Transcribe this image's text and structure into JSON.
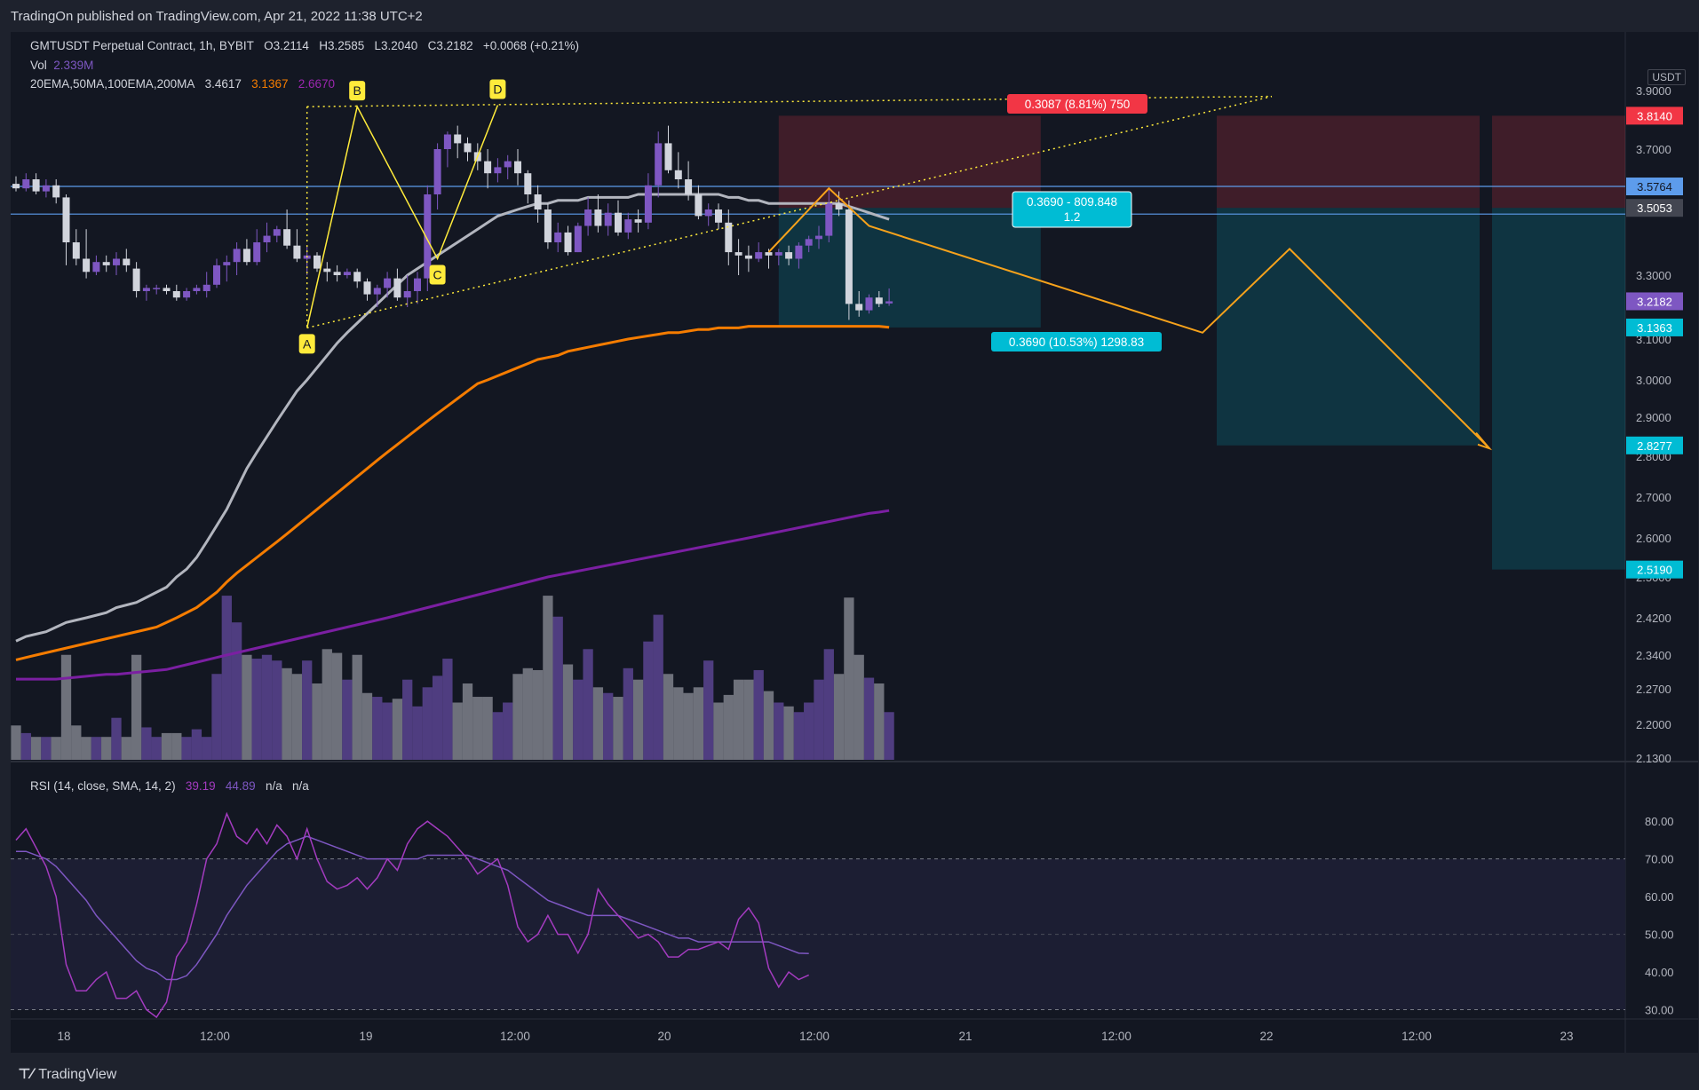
{
  "header": {
    "published": "TradingOn published on TradingView.com, Apr 21, 2022 11:38 UTC+2"
  },
  "legend": {
    "symbol": "GMTUSDT Perpetual Contract, 1h, BYBIT",
    "open_label": "O",
    "open": "3.2114",
    "high_label": "H",
    "high": "3.2585",
    "low_label": "L",
    "low": "3.2040",
    "close_label": "C",
    "close": "3.2182",
    "change": "+0.0068 (+0.21%)",
    "vol_label": "Vol",
    "vol_value": "2.339M",
    "ma_label": "20EMA,50MA,100EMA,200MA",
    "ma_values": [
      "3.4617",
      "3.1367",
      "2.6670"
    ],
    "ma_colors": [
      "#b2b5be",
      "#f57c00",
      "#9c27b0"
    ],
    "rsi_label": "RSI (14, close, SMA, 14, 2)",
    "rsi_value": "39.19",
    "rsi_sma_value": "44.89",
    "rsi_na1": "n/a",
    "rsi_na2": "n/a"
  },
  "currency": "USDT",
  "footer": {
    "brand": "TradingView"
  },
  "colors": {
    "up": "#7e57c2",
    "down": "#d1d4dc",
    "ema20": "#b2b5be",
    "ema100": "#f57c00",
    "ma200": "#7b1fa2",
    "rsi": "#a33bbf",
    "rsi_ma": "#7e57c2",
    "pattern": "#ffeb3b",
    "projection": "#f7a21b",
    "target": "#00bcd4",
    "stop": "#f23645",
    "hline": "#5d9cec"
  },
  "chart_data": {
    "type": "candlestick",
    "price_ticks": [
      "3.9000",
      "3.7000",
      "3.5000",
      "3.3000",
      "3.1000",
      "3.0000",
      "2.9000",
      "2.8000",
      "2.7000",
      "2.6000",
      "2.5000",
      "2.4200",
      "2.3400",
      "2.2700",
      "2.2000",
      "2.1300"
    ],
    "time_ticks": [
      "18",
      "12:00",
      "19",
      "12:00",
      "20",
      "12:00",
      "21",
      "12:00",
      "22",
      "12:00",
      "23"
    ],
    "rsi_ticks": [
      "80.00",
      "70.00",
      "60.00",
      "50.00",
      "40.00",
      "30.00"
    ],
    "rsi_levels": [
      70,
      30
    ],
    "price_tags": [
      {
        "label": "3.8140",
        "kind": "stop"
      },
      {
        "label": "3.5764",
        "kind": "hline"
      },
      {
        "label": "3.5053",
        "kind": "neutral"
      },
      {
        "label": "3.2182",
        "kind": "last"
      },
      {
        "label": "3.1363",
        "kind": "target"
      },
      {
        "label": "2.8277",
        "kind": "target"
      },
      {
        "label": "2.5190",
        "kind": "target"
      }
    ],
    "pattern_labels": [
      "A",
      "B",
      "C",
      "D"
    ],
    "pattern_points": [
      {
        "label": "A",
        "t": 29,
        "p": 3.135
      },
      {
        "label": "B",
        "t": 34,
        "p": 3.845
      },
      {
        "label": "C",
        "t": 42,
        "p": 3.35
      },
      {
        "label": "D",
        "t": 48,
        "p": 3.85
      }
    ],
    "annotations": {
      "stop_box": "0.3087 (8.81%) 750",
      "target_box": "0.3690 (10.53%) 1298.83",
      "rr_box_top": "0.3690 - 809.848",
      "rr_box_bottom": "1.2"
    },
    "candles": [
      [
        3.585,
        3.61,
        3.56,
        3.57
      ],
      [
        3.57,
        3.62,
        3.56,
        3.6
      ],
      [
        3.6,
        3.62,
        3.55,
        3.56
      ],
      [
        3.56,
        3.6,
        3.54,
        3.58
      ],
      [
        3.58,
        3.6,
        3.52,
        3.54
      ],
      [
        3.54,
        3.55,
        3.33,
        3.4
      ],
      [
        3.4,
        3.44,
        3.33,
        3.35
      ],
      [
        3.35,
        3.44,
        3.29,
        3.31
      ],
      [
        3.31,
        3.36,
        3.3,
        3.34
      ],
      [
        3.34,
        3.36,
        3.31,
        3.33
      ],
      [
        3.33,
        3.37,
        3.3,
        3.35
      ],
      [
        3.35,
        3.38,
        3.31,
        3.33
      ],
      [
        3.32,
        3.34,
        3.23,
        3.25
      ],
      [
        3.25,
        3.27,
        3.22,
        3.26
      ],
      [
        3.26,
        3.27,
        3.24,
        3.26
      ],
      [
        3.26,
        3.27,
        3.24,
        3.25
      ],
      [
        3.25,
        3.27,
        3.22,
        3.23
      ],
      [
        3.23,
        3.26,
        3.22,
        3.25
      ],
      [
        3.25,
        3.27,
        3.24,
        3.26
      ],
      [
        3.25,
        3.31,
        3.23,
        3.27
      ],
      [
        3.27,
        3.35,
        3.26,
        3.33
      ],
      [
        3.33,
        3.36,
        3.28,
        3.34
      ],
      [
        3.34,
        3.4,
        3.3,
        3.38
      ],
      [
        3.38,
        3.41,
        3.33,
        3.34
      ],
      [
        3.34,
        3.44,
        3.33,
        3.4
      ],
      [
        3.4,
        3.46,
        3.37,
        3.42
      ],
      [
        3.42,
        3.45,
        3.4,
        3.44
      ],
      [
        3.44,
        3.5,
        3.38,
        3.39
      ],
      [
        3.39,
        3.44,
        3.34,
        3.35
      ],
      [
        3.35,
        3.39,
        3.3,
        3.36
      ],
      [
        3.36,
        3.37,
        3.31,
        3.32
      ],
      [
        3.32,
        3.34,
        3.28,
        3.31
      ],
      [
        3.31,
        3.33,
        3.28,
        3.3
      ],
      [
        3.3,
        3.32,
        3.29,
        3.31
      ],
      [
        3.31,
        3.32,
        3.26,
        3.28
      ],
      [
        3.28,
        3.29,
        3.22,
        3.24
      ],
      [
        3.24,
        3.27,
        3.2,
        3.26
      ],
      [
        3.26,
        3.31,
        3.23,
        3.29
      ],
      [
        3.29,
        3.32,
        3.22,
        3.23
      ],
      [
        3.23,
        3.3,
        3.2,
        3.25
      ],
      [
        3.25,
        3.31,
        3.21,
        3.29
      ],
      [
        3.29,
        3.58,
        3.25,
        3.55
      ],
      [
        3.55,
        3.72,
        3.5,
        3.7
      ],
      [
        3.7,
        3.76,
        3.64,
        3.75
      ],
      [
        3.75,
        3.78,
        3.67,
        3.72
      ],
      [
        3.72,
        3.74,
        3.66,
        3.69
      ],
      [
        3.69,
        3.72,
        3.63,
        3.66
      ],
      [
        3.66,
        3.7,
        3.57,
        3.62
      ],
      [
        3.62,
        3.67,
        3.59,
        3.64
      ],
      [
        3.64,
        3.68,
        3.6,
        3.66
      ],
      [
        3.66,
        3.7,
        3.58,
        3.62
      ],
      [
        3.62,
        3.63,
        3.52,
        3.55
      ],
      [
        3.55,
        3.58,
        3.46,
        3.5
      ],
      [
        3.5,
        3.52,
        3.38,
        3.4
      ],
      [
        3.4,
        3.46,
        3.37,
        3.43
      ],
      [
        3.43,
        3.45,
        3.36,
        3.37
      ],
      [
        3.37,
        3.46,
        3.37,
        3.45
      ],
      [
        3.45,
        3.54,
        3.42,
        3.5
      ],
      [
        3.5,
        3.55,
        3.43,
        3.45
      ],
      [
        3.45,
        3.52,
        3.42,
        3.49
      ],
      [
        3.49,
        3.53,
        3.42,
        3.43
      ],
      [
        3.43,
        3.49,
        3.41,
        3.47
      ],
      [
        3.47,
        3.5,
        3.43,
        3.46
      ],
      [
        3.46,
        3.62,
        3.44,
        3.58
      ],
      [
        3.58,
        3.76,
        3.54,
        3.72
      ],
      [
        3.72,
        3.78,
        3.62,
        3.63
      ],
      [
        3.63,
        3.69,
        3.57,
        3.6
      ],
      [
        3.6,
        3.66,
        3.53,
        3.55
      ],
      [
        3.55,
        3.58,
        3.47,
        3.48
      ],
      [
        3.48,
        3.52,
        3.45,
        3.5
      ],
      [
        3.5,
        3.52,
        3.44,
        3.46
      ],
      [
        3.46,
        3.5,
        3.33,
        3.37
      ],
      [
        3.37,
        3.41,
        3.3,
        3.36
      ],
      [
        3.36,
        3.39,
        3.31,
        3.35
      ],
      [
        3.35,
        3.4,
        3.34,
        3.37
      ],
      [
        3.37,
        3.38,
        3.32,
        3.36
      ],
      [
        3.36,
        3.38,
        3.33,
        3.37
      ],
      [
        3.37,
        3.39,
        3.33,
        3.35
      ],
      [
        3.35,
        3.4,
        3.32,
        3.39
      ],
      [
        3.39,
        3.42,
        3.37,
        3.41
      ],
      [
        3.41,
        3.45,
        3.38,
        3.42
      ],
      [
        3.42,
        3.57,
        3.4,
        3.52
      ],
      [
        3.52,
        3.56,
        3.48,
        3.5
      ],
      [
        3.5,
        3.53,
        3.16,
        3.21
      ],
      [
        3.21,
        3.25,
        3.17,
        3.19
      ],
      [
        3.19,
        3.24,
        3.18,
        3.23
      ],
      [
        3.23,
        3.25,
        3.2,
        3.21
      ],
      [
        3.2114,
        3.2585,
        3.204,
        3.2182
      ]
    ],
    "volume": [
      0.18,
      0.14,
      0.12,
      0.12,
      0.12,
      0.55,
      0.18,
      0.12,
      0.12,
      0.12,
      0.22,
      0.12,
      0.55,
      0.17,
      0.12,
      0.14,
      0.14,
      0.12,
      0.16,
      0.12,
      0.45,
      0.86,
      0.72,
      0.55,
      0.53,
      0.55,
      0.52,
      0.48,
      0.45,
      0.52,
      0.4,
      0.58,
      0.56,
      0.42,
      0.55,
      0.35,
      0.33,
      0.3,
      0.32,
      0.42,
      0.28,
      0.38,
      0.44,
      0.53,
      0.3,
      0.4,
      0.33,
      0.33,
      0.25,
      0.3,
      0.45,
      0.48,
      0.47,
      0.86,
      0.75,
      0.5,
      0.42,
      0.58,
      0.38,
      0.35,
      0.33,
      0.48,
      0.42,
      0.62,
      0.76,
      0.45,
      0.38,
      0.35,
      0.38,
      0.52,
      0.3,
      0.34,
      0.42,
      0.42,
      0.47,
      0.36,
      0.3,
      0.28,
      0.25,
      0.3,
      0.42,
      0.58,
      0.45,
      0.85,
      0.55,
      0.43,
      0.4,
      0.25
    ],
    "ema20": [
      2.37,
      2.38,
      2.385,
      2.39,
      2.4,
      2.41,
      2.415,
      2.42,
      2.425,
      2.43,
      2.44,
      2.445,
      2.45,
      2.46,
      2.47,
      2.48,
      2.5,
      2.52,
      2.55,
      2.59,
      2.63,
      2.67,
      2.72,
      2.77,
      2.81,
      2.85,
      2.89,
      2.93,
      2.97,
      3.0,
      3.03,
      3.06,
      3.09,
      3.12,
      3.15,
      3.18,
      3.21,
      3.24,
      3.27,
      3.3,
      3.32,
      3.34,
      3.36,
      3.38,
      3.4,
      3.42,
      3.44,
      3.46,
      3.48,
      3.49,
      3.5,
      3.51,
      3.52,
      3.52,
      3.53,
      3.53,
      3.53,
      3.54,
      3.54,
      3.54,
      3.54,
      3.54,
      3.55,
      3.55,
      3.55,
      3.55,
      3.55,
      3.55,
      3.55,
      3.55,
      3.55,
      3.54,
      3.54,
      3.53,
      3.53,
      3.52,
      3.52,
      3.52,
      3.52,
      3.52,
      3.52,
      3.52,
      3.52,
      3.51,
      3.5,
      3.49,
      3.48,
      3.47
    ],
    "ema100": [
      2.33,
      2.335,
      2.34,
      2.345,
      2.35,
      2.355,
      2.36,
      2.365,
      2.37,
      2.375,
      2.38,
      2.385,
      2.39,
      2.395,
      2.4,
      2.41,
      2.42,
      2.43,
      2.44,
      2.455,
      2.47,
      2.49,
      2.51,
      2.53,
      2.55,
      2.57,
      2.59,
      2.61,
      2.63,
      2.65,
      2.67,
      2.69,
      2.71,
      2.73,
      2.75,
      2.77,
      2.79,
      2.81,
      2.83,
      2.85,
      2.87,
      2.89,
      2.91,
      2.93,
      2.95,
      2.97,
      2.99,
      3.0,
      3.01,
      3.02,
      3.03,
      3.04,
      3.05,
      3.055,
      3.06,
      3.07,
      3.075,
      3.08,
      3.085,
      3.09,
      3.095,
      3.1,
      3.105,
      3.11,
      3.115,
      3.12,
      3.12,
      3.125,
      3.13,
      3.13,
      3.135,
      3.135,
      3.135,
      3.14,
      3.14,
      3.14,
      3.14,
      3.14,
      3.14,
      3.14,
      3.14,
      3.14,
      3.14,
      3.14,
      3.14,
      3.14,
      3.14,
      3.1367
    ],
    "ma200": [
      2.29,
      2.29,
      2.29,
      2.29,
      2.29,
      2.292,
      2.294,
      2.296,
      2.298,
      2.3,
      2.3,
      2.302,
      2.304,
      2.306,
      2.308,
      2.31,
      2.315,
      2.32,
      2.325,
      2.33,
      2.335,
      2.34,
      2.345,
      2.35,
      2.355,
      2.36,
      2.365,
      2.37,
      2.375,
      2.38,
      2.385,
      2.39,
      2.395,
      2.4,
      2.405,
      2.41,
      2.415,
      2.42,
      2.425,
      2.43,
      2.435,
      2.44,
      2.445,
      2.45,
      2.455,
      2.46,
      2.465,
      2.47,
      2.475,
      2.48,
      2.485,
      2.49,
      2.495,
      2.5,
      2.505,
      2.51,
      2.515,
      2.52,
      2.525,
      2.53,
      2.535,
      2.54,
      2.545,
      2.55,
      2.555,
      2.56,
      2.565,
      2.57,
      2.575,
      2.58,
      2.585,
      2.59,
      2.595,
      2.6,
      2.605,
      2.61,
      2.615,
      2.62,
      2.625,
      2.63,
      2.635,
      2.64,
      2.645,
      2.65,
      2.655,
      2.66,
      2.663,
      2.667
    ],
    "rsi": [
      75,
      78,
      73,
      68,
      60,
      42,
      35,
      35,
      38,
      40,
      33,
      33,
      35,
      30,
      28,
      32,
      44,
      48,
      58,
      70,
      74,
      82,
      76,
      74,
      78,
      74,
      79,
      76,
      70,
      78,
      70,
      64,
      62,
      63,
      65,
      62,
      65,
      70,
      67,
      74,
      78,
      80,
      78,
      76,
      73,
      70,
      66,
      68,
      70,
      63,
      52,
      48,
      50,
      55,
      50,
      50,
      45,
      50,
      62,
      58,
      55,
      52,
      49,
      50,
      48,
      44,
      44,
      46,
      46,
      47,
      48,
      46,
      54,
      57,
      53,
      41,
      36,
      40,
      38,
      39.19
    ],
    "rsi_ma": [
      72,
      72,
      71,
      70,
      68,
      65,
      62,
      59,
      55,
      52,
      49,
      46,
      43,
      41,
      40,
      38,
      38,
      39,
      42,
      46,
      50,
      55,
      59,
      63,
      66,
      69,
      72,
      74,
      75,
      76,
      75,
      74,
      73,
      72,
      71,
      70,
      70,
      70,
      70,
      70,
      70,
      71,
      71,
      71,
      71,
      71,
      70,
      69,
      68,
      67,
      65,
      63,
      61,
      59,
      58,
      57,
      56,
      55,
      55,
      55,
      55,
      54,
      53,
      52,
      51,
      50,
      49,
      49,
      48,
      48,
      48,
      48,
      48,
      48,
      48,
      48,
      47,
      46,
      45,
      44.89
    ]
  }
}
